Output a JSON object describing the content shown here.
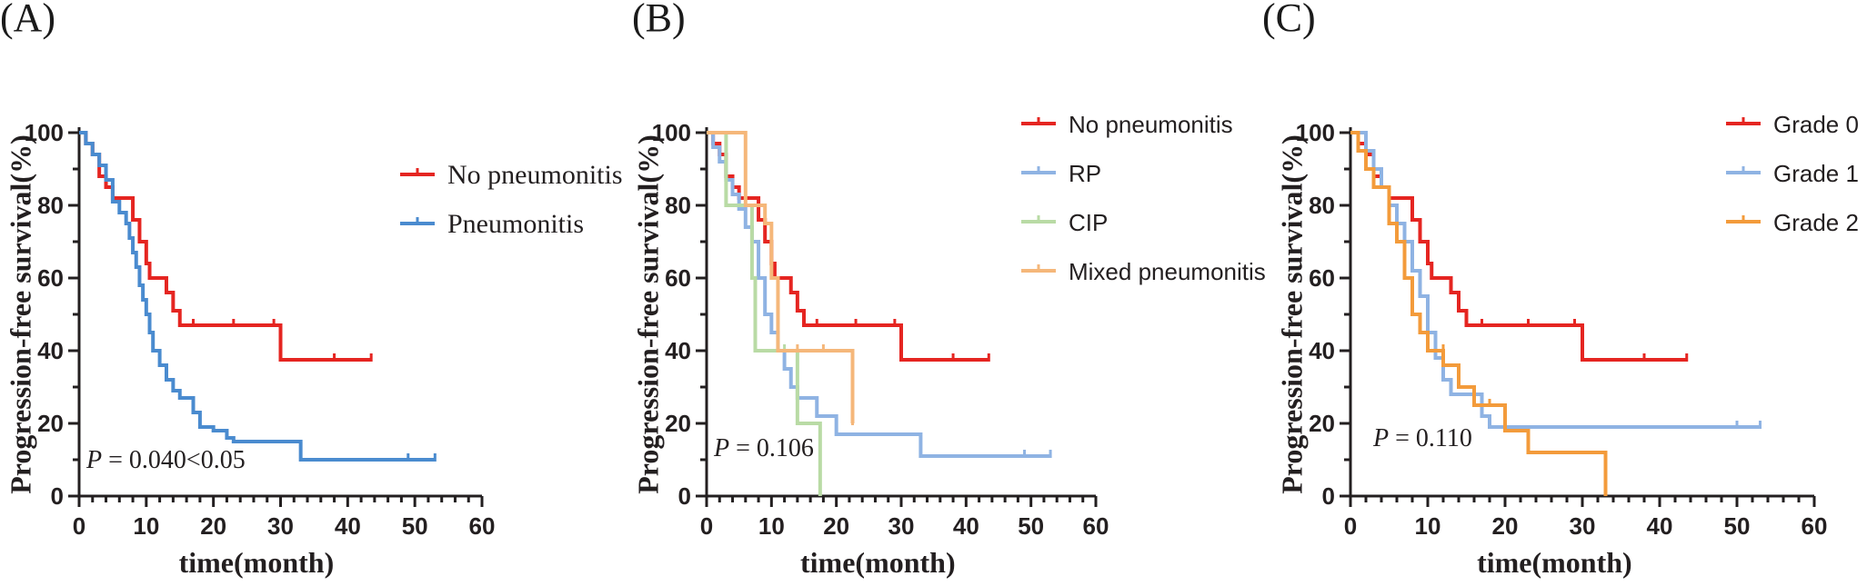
{
  "chart_data": [
    {
      "panel": "(A)",
      "type": "line",
      "subtype": "kaplan-meier",
      "ylabel": "Progression-free survival(%)",
      "xlabel": "time(month)",
      "xlim": [
        0,
        60
      ],
      "ylim": [
        0,
        100
      ],
      "xticks": [
        "0",
        "10",
        "20",
        "30",
        "40",
        "50",
        "60"
      ],
      "yticks": [
        "0",
        "20",
        "40",
        "60",
        "80",
        "100"
      ],
      "pvalue_text": {
        "p": "P",
        "rest": " = 0.040<0.05"
      },
      "legend_font": "serif",
      "series": [
        {
          "name": "No pneumonitis",
          "color": "#e52521",
          "steps": [
            [
              0,
              100
            ],
            [
              1,
              97
            ],
            [
              2,
              94
            ],
            [
              3,
              88
            ],
            [
              4,
              85
            ],
            [
              5,
              82
            ],
            [
              8,
              76
            ],
            [
              9,
              70
            ],
            [
              10,
              64
            ],
            [
              10.5,
              60
            ],
            [
              13,
              56
            ],
            [
              14,
              51
            ],
            [
              15,
              47
            ],
            [
              30,
              37.5
            ],
            [
              43.5,
              37.5
            ]
          ],
          "censored": [
            [
              17,
              47
            ],
            [
              23,
              47
            ],
            [
              29,
              47
            ],
            [
              38,
              37.5
            ],
            [
              43.5,
              37.5
            ]
          ]
        },
        {
          "name": "Pneumonitis",
          "color": "#4a8bcf",
          "steps": [
            [
              0,
              100
            ],
            [
              1,
              97
            ],
            [
              2,
              94
            ],
            [
              3,
              91
            ],
            [
              4,
              87
            ],
            [
              5,
              81
            ],
            [
              6,
              78
            ],
            [
              7,
              75
            ],
            [
              7.5,
              71
            ],
            [
              8,
              67
            ],
            [
              8.5,
              63
            ],
            [
              9,
              58
            ],
            [
              9.5,
              54
            ],
            [
              10,
              50
            ],
            [
              10.5,
              45
            ],
            [
              11,
              40
            ],
            [
              12,
              36
            ],
            [
              13,
              32
            ],
            [
              14,
              29
            ],
            [
              15,
              27
            ],
            [
              17,
              23
            ],
            [
              18,
              19
            ],
            [
              20,
              18
            ],
            [
              22,
              16
            ],
            [
              23,
              15
            ],
            [
              33,
              10
            ],
            [
              53,
              10
            ]
          ],
          "censored": [
            [
              49,
              10
            ],
            [
              53,
              10
            ]
          ]
        }
      ]
    },
    {
      "panel": "(B)",
      "type": "line",
      "subtype": "kaplan-meier",
      "ylabel": "Progression-free survival(%)",
      "xlabel": "time(month)",
      "xlim": [
        0,
        60
      ],
      "ylim": [
        0,
        100
      ],
      "xticks": [
        "0",
        "10",
        "20",
        "30",
        "40",
        "50",
        "60"
      ],
      "yticks": [
        "0",
        "20",
        "40",
        "60",
        "80",
        "100"
      ],
      "pvalue_text": {
        "p": "P",
        "rest": " = 0.106"
      },
      "legend_font": "sans",
      "series": [
        {
          "name": "No pneumonitis",
          "color": "#e52521",
          "steps": [
            [
              0,
              100
            ],
            [
              1,
              97
            ],
            [
              2,
              94
            ],
            [
              3,
              88
            ],
            [
              4,
              85
            ],
            [
              5,
              82
            ],
            [
              8,
              76
            ],
            [
              9,
              70
            ],
            [
              10,
              64
            ],
            [
              10.5,
              60
            ],
            [
              13,
              56
            ],
            [
              14,
              51
            ],
            [
              15,
              47
            ],
            [
              30,
              37.5
            ],
            [
              43.5,
              37.5
            ]
          ],
          "censored": [
            [
              17,
              47
            ],
            [
              23,
              47
            ],
            [
              29,
              47
            ],
            [
              38,
              37.5
            ],
            [
              43.5,
              37.5
            ]
          ]
        },
        {
          "name": "RP",
          "color": "#8fb3e3",
          "steps": [
            [
              0,
              100
            ],
            [
              1,
              96
            ],
            [
              2,
              92
            ],
            [
              3,
              87
            ],
            [
              4,
              83
            ],
            [
              5,
              79
            ],
            [
              6,
              74
            ],
            [
              7,
              70
            ],
            [
              8,
              60
            ],
            [
              9,
              50
            ],
            [
              10,
              45
            ],
            [
              11,
              40
            ],
            [
              12,
              35
            ],
            [
              13,
              30
            ],
            [
              14,
              27
            ],
            [
              17,
              22
            ],
            [
              20,
              17
            ],
            [
              33,
              11
            ],
            [
              53,
              11
            ]
          ],
          "censored": [
            [
              49,
              11
            ],
            [
              53,
              11
            ]
          ]
        },
        {
          "name": "CIP",
          "color": "#b9dba5",
          "steps": [
            [
              0,
              100
            ],
            [
              3,
              80
            ],
            [
              7,
              60
            ],
            [
              7.5,
              40
            ],
            [
              14,
              20
            ],
            [
              17.5,
              0
            ]
          ],
          "censored": [
            [
              12,
              40
            ]
          ]
        },
        {
          "name": "Mixed pneumonitis",
          "color": "#f5b77a",
          "steps": [
            [
              0,
              100
            ],
            [
              6,
              80
            ],
            [
              9,
              75
            ],
            [
              10,
              60
            ],
            [
              11,
              40
            ],
            [
              22.5,
              20
            ]
          ],
          "censored": [
            [
              14,
              40
            ],
            [
              18,
              40
            ],
            [
              22.5,
              20
            ]
          ]
        }
      ]
    },
    {
      "panel": "(C)",
      "type": "line",
      "subtype": "kaplan-meier",
      "ylabel": "Progression-free survival(%)",
      "xlabel": "time(month)",
      "xlim": [
        0,
        60
      ],
      "ylim": [
        0,
        100
      ],
      "xticks": [
        "0",
        "10",
        "20",
        "30",
        "40",
        "50",
        "60"
      ],
      "yticks": [
        "0",
        "20",
        "40",
        "60",
        "80",
        "100"
      ],
      "pvalue_text": {
        "p": "P",
        "rest": " = 0.110"
      },
      "legend_font": "sans",
      "series": [
        {
          "name": "Grade 0",
          "color": "#e52521",
          "steps": [
            [
              0,
              100
            ],
            [
              1,
              97
            ],
            [
              2,
              94
            ],
            [
              3,
              88
            ],
            [
              4,
              85
            ],
            [
              5,
              82
            ],
            [
              8,
              76
            ],
            [
              9,
              70
            ],
            [
              10,
              64
            ],
            [
              10.5,
              60
            ],
            [
              13,
              56
            ],
            [
              14,
              51
            ],
            [
              15,
              47
            ],
            [
              30,
              37.5
            ],
            [
              43.5,
              37.5
            ]
          ],
          "censored": [
            [
              17,
              47
            ],
            [
              23,
              47
            ],
            [
              29,
              47
            ],
            [
              38,
              37.5
            ],
            [
              43.5,
              37.5
            ]
          ]
        },
        {
          "name": "Grade 1",
          "color": "#8fb3e3",
          "steps": [
            [
              0,
              100
            ],
            [
              2,
              95
            ],
            [
              3,
              90
            ],
            [
              4,
              85
            ],
            [
              5,
              80
            ],
            [
              6,
              75
            ],
            [
              7,
              70
            ],
            [
              8,
              62
            ],
            [
              9,
              55
            ],
            [
              10,
              45
            ],
            [
              11,
              38
            ],
            [
              12,
              32
            ],
            [
              13,
              28
            ],
            [
              17,
              22
            ],
            [
              18,
              19
            ],
            [
              53,
              19
            ]
          ],
          "censored": [
            [
              50,
              19
            ],
            [
              53,
              19
            ]
          ]
        },
        {
          "name": "Grade 2",
          "color": "#f39b3b",
          "steps": [
            [
              0,
              100
            ],
            [
              1,
              95
            ],
            [
              2,
              90
            ],
            [
              3,
              85
            ],
            [
              5,
              75
            ],
            [
              6,
              70
            ],
            [
              7,
              60
            ],
            [
              8,
              50
            ],
            [
              9,
              45
            ],
            [
              10,
              40
            ],
            [
              12,
              36
            ],
            [
              14,
              30
            ],
            [
              16,
              25
            ],
            [
              20,
              18
            ],
            [
              23,
              12
            ],
            [
              33,
              0
            ]
          ],
          "censored": [
            [
              12,
              40
            ],
            [
              18,
              25
            ]
          ]
        }
      ]
    }
  ]
}
